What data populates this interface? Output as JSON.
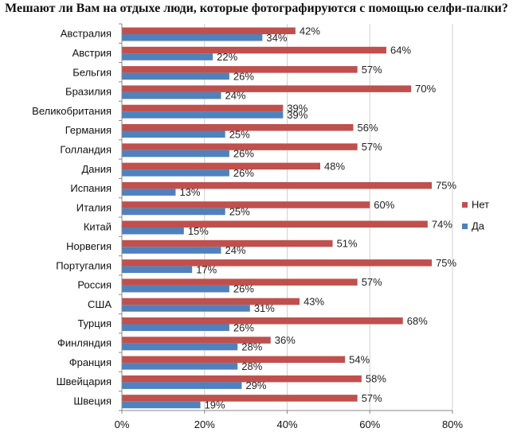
{
  "chart_data": {
    "type": "bar",
    "orientation": "horizontal",
    "title": "Мешают ли Вам на отдыхе люди, которые фотографируются  с помощью селфи-палки?",
    "categories": [
      "Австралия",
      "Австрия",
      "Бельгия",
      "Бразилия",
      "Великобритания",
      "Германия",
      "Голландия",
      "Дания",
      "Испания",
      "Италия",
      "Китай",
      "Норвегия",
      "Португалия",
      "Россия",
      "США",
      "Турция",
      "Финляндия",
      "Франция",
      "Швейцария",
      "Швеция"
    ],
    "series": [
      {
        "name": "Нет",
        "color": "#c0504d",
        "values": [
          42,
          64,
          57,
          70,
          39,
          56,
          57,
          48,
          75,
          60,
          74,
          51,
          75,
          57,
          43,
          68,
          36,
          54,
          58,
          57
        ]
      },
      {
        "name": "Да",
        "color": "#4f81bd",
        "values": [
          34,
          22,
          26,
          24,
          39,
          25,
          26,
          26,
          13,
          25,
          15,
          24,
          17,
          26,
          31,
          26,
          28,
          28,
          29,
          19
        ]
      }
    ],
    "value_suffix": "%",
    "xlim": [
      0,
      80
    ],
    "xticks": [
      0,
      20,
      40,
      60,
      80
    ],
    "xtick_labels": [
      "0%",
      "20%",
      "40%",
      "60%",
      "80%"
    ],
    "grid": "vertical",
    "legend_position": "right"
  }
}
